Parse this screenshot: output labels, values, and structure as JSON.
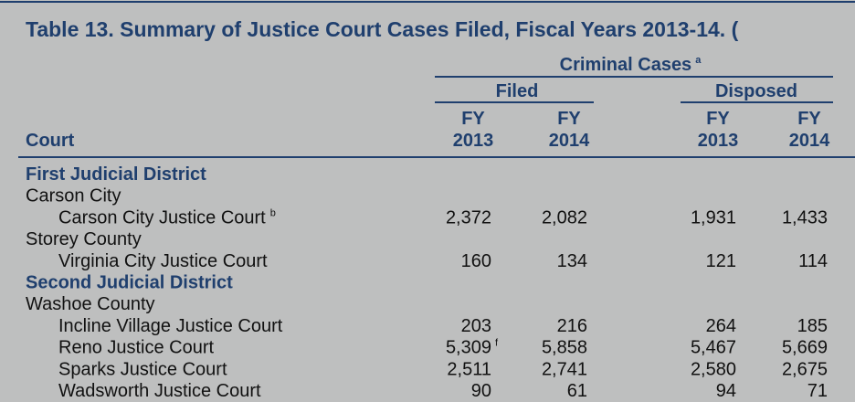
{
  "title": "Table 13. Summary of Justice Court Cases Filed, Fiscal Years 2013-14. (",
  "header": {
    "group": "Criminal Cases",
    "group_note": "a",
    "filed": "Filed",
    "disposed": "Disposed",
    "court": "Court",
    "columns": [
      [
        "FY",
        "2013"
      ],
      [
        "FY",
        "2014"
      ],
      [
        "FY",
        "2013"
      ],
      [
        "FY",
        "2014"
      ]
    ]
  },
  "rows": [
    {
      "kind": "district",
      "label": "First Judicial District"
    },
    {
      "kind": "county",
      "label": "Carson City"
    },
    {
      "kind": "court",
      "label": "Carson City Justice Court",
      "note": "b",
      "values": [
        "2,372",
        "2,082",
        "1,931",
        "1,433"
      ]
    },
    {
      "kind": "county",
      "label": "Storey County"
    },
    {
      "kind": "court",
      "label": "Virginia City Justice Court",
      "values": [
        "160",
        "134",
        "121",
        "114"
      ]
    },
    {
      "kind": "district",
      "label": "Second Judicial District"
    },
    {
      "kind": "county",
      "label": "Washoe County"
    },
    {
      "kind": "court",
      "label": "Incline Village Justice Court",
      "values": [
        "203",
        "216",
        "264",
        "185"
      ]
    },
    {
      "kind": "court",
      "label": "Reno Justice Court",
      "values": [
        {
          "text": "5,309",
          "note": "f"
        },
        "5,858",
        "5,467",
        "5,669"
      ]
    },
    {
      "kind": "court",
      "label": "Sparks Justice Court",
      "values": [
        "2,511",
        "2,741",
        "2,580",
        "2,675"
      ]
    },
    {
      "kind": "court",
      "label": "Wadsworth Justice Court",
      "values": [
        "90",
        "61",
        "94",
        "71"
      ]
    }
  ]
}
